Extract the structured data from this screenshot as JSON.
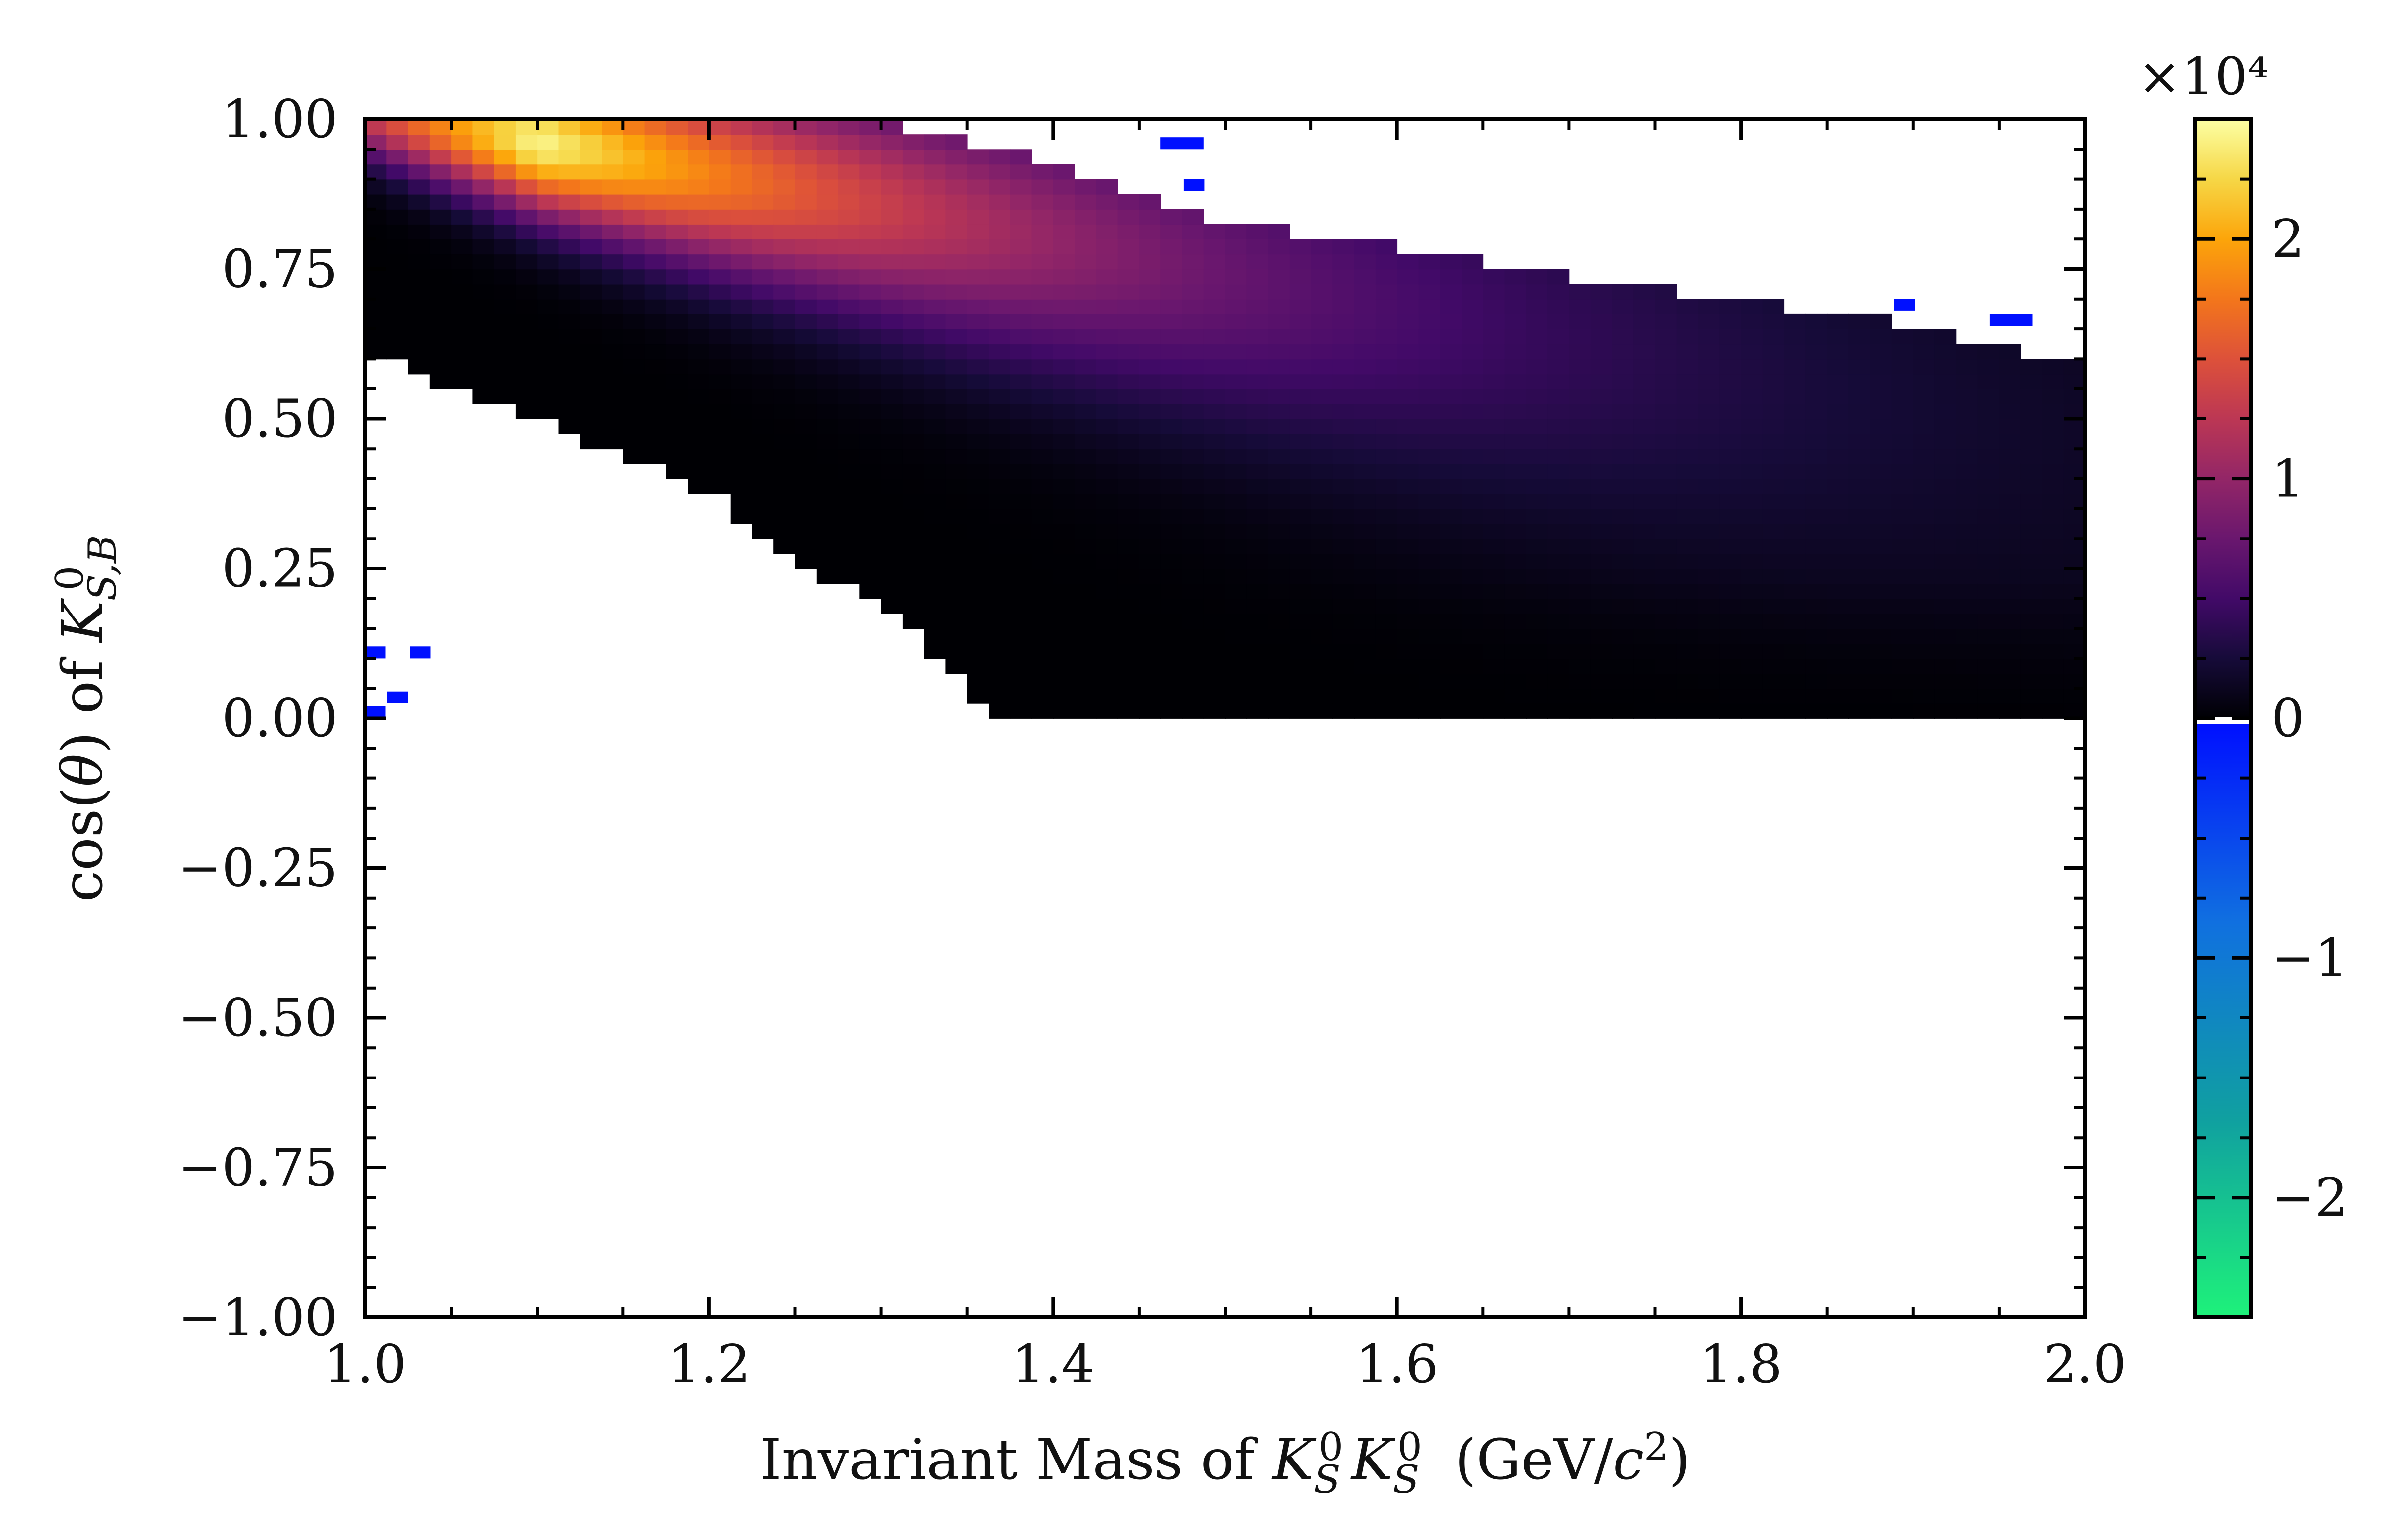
{
  "chart_data": {
    "type": "heatmap",
    "xlabel": "Invariant Mass of K_S^0 K_S^0 (GeV/c^2)",
    "ylabel": "cos(θ) of K_{S,B}^0",
    "xlim": [
      1.0,
      2.0
    ],
    "ylim": [
      -1.0,
      1.0
    ],
    "x_ticks": [
      "1.0",
      "1.2",
      "1.4",
      "1.6",
      "1.8",
      "2.0"
    ],
    "y_ticks": [
      "−1.00",
      "−0.75",
      "−0.50",
      "−0.25",
      "0.00",
      "0.25",
      "0.50",
      "0.75",
      "1.00"
    ],
    "colorbar": {
      "range": [
        -25000,
        25000
      ],
      "ticks": [
        "−2",
        "−1",
        "0",
        "1",
        "2"
      ],
      "multiplier": "×10⁴",
      "negative_colors": [
        "#1ef27a",
        "#10a0a0",
        "#1070e0",
        "#0010ff"
      ],
      "positive_colormap": "inferno"
    },
    "bins": {
      "x_bins": 80,
      "y_bins": 80
    },
    "peak": {
      "x": 1.1,
      "y": 0.935,
      "value": 25000
    },
    "lower_boundary": [
      [
        1.0,
        0.62
      ],
      [
        1.05,
        0.55
      ],
      [
        1.1,
        0.5
      ],
      [
        1.15,
        0.44
      ],
      [
        1.2,
        0.38
      ],
      [
        1.25,
        0.26
      ],
      [
        1.3,
        0.2
      ],
      [
        1.35,
        0.06
      ],
      [
        1.365,
        0.0
      ]
    ],
    "upper_boundary": [
      [
        1.0,
        1.0
      ],
      [
        1.3,
        1.0
      ],
      [
        1.36,
        0.96
      ],
      [
        1.4,
        0.92
      ],
      [
        1.45,
        0.88
      ],
      [
        1.5,
        0.83
      ],
      [
        1.6,
        0.79
      ],
      [
        1.7,
        0.74
      ],
      [
        1.8,
        0.7
      ],
      [
        1.9,
        0.66
      ],
      [
        1.95,
        0.62
      ],
      [
        2.0,
        0.6
      ]
    ],
    "negative_bins": [
      {
        "x": 1.006,
        "y": 0.11,
        "w": 0.012,
        "h": 0.02
      },
      {
        "x": 1.032,
        "y": 0.11,
        "w": 0.012,
        "h": 0.02
      },
      {
        "x": 1.019,
        "y": 0.035,
        "w": 0.012,
        "h": 0.02
      },
      {
        "x": 1.006,
        "y": 0.01,
        "w": 0.012,
        "h": 0.02
      },
      {
        "x": 1.475,
        "y": 0.96,
        "w": 0.025,
        "h": 0.02
      },
      {
        "x": 1.482,
        "y": 0.89,
        "w": 0.012,
        "h": 0.02
      },
      {
        "x": 1.895,
        "y": 0.69,
        "w": 0.012,
        "h": 0.02
      },
      {
        "x": 1.957,
        "y": 0.665,
        "w": 0.025,
        "h": 0.02
      }
    ]
  }
}
